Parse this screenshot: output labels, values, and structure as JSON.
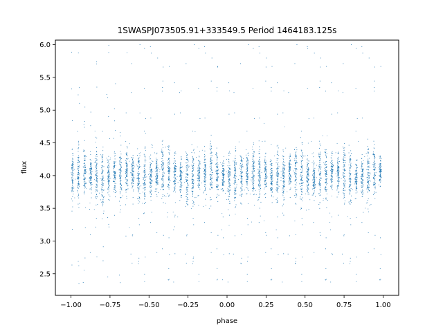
{
  "chart_data": {
    "type": "scatter",
    "title": "1SWASPJ073505.91+333549.5 Period 1464183.125s",
    "xlabel": "phase",
    "ylabel": "flux",
    "xlim": [
      -1.1,
      1.1
    ],
    "ylim": [
      2.17,
      6.07
    ],
    "grid": false,
    "marker_color": "#1f77b4",
    "x_ticks": [
      -1.0,
      -0.75,
      -0.5,
      -0.25,
      0.0,
      0.25,
      0.5,
      0.75,
      1.0
    ],
    "x_tick_labels": [
      "−1.00",
      "−0.75",
      "−0.50",
      "−0.25",
      "0.00",
      "0.25",
      "0.50",
      "0.75",
      "1.00"
    ],
    "y_ticks": [
      2.5,
      3.0,
      3.5,
      4.0,
      4.5,
      5.0,
      5.5,
      6.0
    ],
    "y_tick_labels": [
      "2.5",
      "3.0",
      "3.5",
      "4.0",
      "4.5",
      "5.0",
      "5.5",
      "6.0"
    ],
    "series": [
      {
        "x_range": [
          -1.0,
          1.0
        ],
        "flux_center": 4.02,
        "typical_band": [
          3.5,
          4.55
        ],
        "outlier_range": [
          2.35,
          6.05
        ],
        "stripe_centers": [
          -0.993,
          -0.955,
          -0.915,
          -0.875,
          -0.838,
          -0.8,
          -0.762,
          -0.722,
          -0.685,
          -0.645,
          -0.607,
          -0.568,
          -0.53,
          -0.49,
          -0.452,
          -0.414,
          -0.375,
          -0.336,
          -0.298,
          -0.259,
          -0.22,
          -0.182,
          -0.143,
          -0.104,
          -0.065,
          -0.027,
          0.012,
          0.05,
          0.09,
          0.128,
          0.167,
          0.206,
          0.245,
          0.283,
          0.322,
          0.36,
          0.4,
          0.438,
          0.477,
          0.516,
          0.555,
          0.593,
          0.632,
          0.67,
          0.71,
          0.748,
          0.787,
          0.826,
          0.865,
          0.903,
          0.942,
          0.98
        ]
      }
    ]
  }
}
